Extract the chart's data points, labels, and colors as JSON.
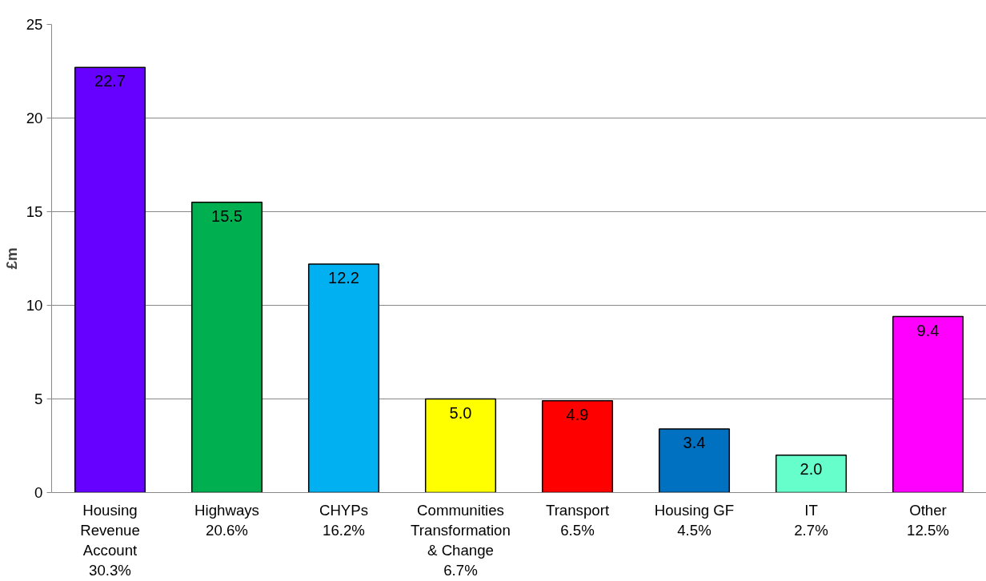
{
  "chart_data": {
    "type": "bar",
    "ylabel": "£m",
    "categories": [
      "Housing\nRevenue\nAccount\n30.3%",
      "Highways\n20.6%",
      "CHYPs\n16.2%",
      "Communities\nTransformation\n& Change\n6.7%",
      "Transport\n6.5%",
      "Housing GF\n4.5%",
      "IT\n2.7%",
      "Other\n12.5%"
    ],
    "values": [
      22.7,
      15.5,
      12.2,
      5.0,
      4.9,
      3.4,
      2.0,
      9.4
    ],
    "value_labels": [
      "22.7",
      "15.5",
      "12.2",
      "5.0",
      "4.9",
      "3.4",
      "2.0",
      "9.4"
    ],
    "colors": [
      "#6600ff",
      "#00b050",
      "#00b0f0",
      "#ffff00",
      "#ff0000",
      "#0070c0",
      "#66ffcc",
      "#ff00ff"
    ],
    "ylim": [
      0,
      25
    ],
    "yticks": [
      0,
      5,
      10,
      15,
      20,
      25
    ],
    "grid": "y"
  }
}
